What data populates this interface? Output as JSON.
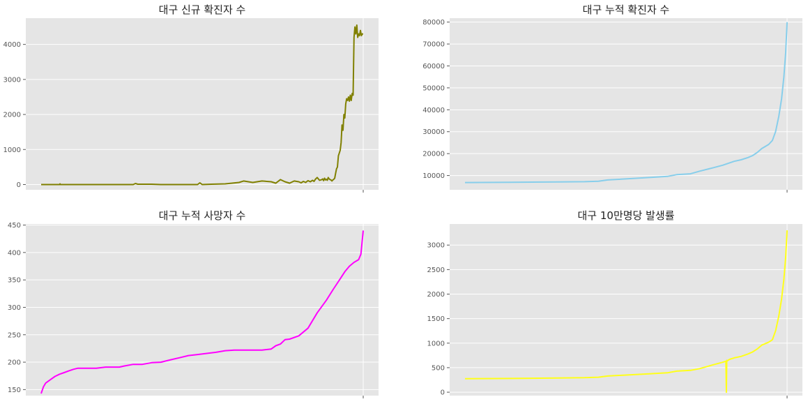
{
  "chart_data": [
    {
      "type": "line",
      "title": "대구 신규 확진자 수",
      "xlabel": "",
      "ylabel": "",
      "ylim": [
        -150,
        4750
      ],
      "yticks": [
        0,
        1000,
        2000,
        3000,
        4000
      ],
      "grid": true,
      "x_tick_count": 1,
      "series": [
        {
          "color": "#808000",
          "x": [
            0,
            20,
            40,
            41,
            42,
            60,
            80,
            100,
            120,
            140,
            160,
            180,
            200,
            205,
            210,
            240,
            260,
            280,
            300,
            320,
            340,
            345,
            350,
            370,
            400,
            430,
            440,
            460,
            480,
            500,
            510,
            520,
            530,
            540,
            550,
            560,
            565,
            570,
            575,
            580,
            585,
            590,
            593,
            596,
            600,
            605,
            610,
            612,
            614,
            616,
            618,
            620,
            622,
            624,
            626,
            628,
            630,
            632,
            634,
            636,
            638,
            640,
            642,
            644,
            646,
            648,
            650,
            652,
            654,
            656,
            658,
            660,
            662,
            664,
            666,
            668,
            670,
            672,
            674,
            676,
            678,
            680,
            682,
            684,
            686,
            688,
            690,
            692,
            694,
            696,
            698,
            700
          ],
          "values": [
            0,
            0,
            0,
            20,
            0,
            0,
            0,
            0,
            0,
            0,
            0,
            0,
            0,
            30,
            10,
            10,
            0,
            0,
            0,
            0,
            0,
            50,
            0,
            10,
            20,
            60,
            100,
            60,
            100,
            80,
            40,
            140,
            80,
            40,
            100,
            80,
            50,
            90,
            60,
            110,
            80,
            120,
            90,
            150,
            200,
            120,
            140,
            160,
            110,
            180,
            130,
            150,
            120,
            200,
            160,
            140,
            130,
            100,
            130,
            150,
            180,
            320,
            450,
            500,
            820,
            900,
            980,
            1200,
            1700,
            1550,
            2000,
            1900,
            2300,
            2450,
            2400,
            2500,
            2380,
            2550,
            2400,
            2600,
            2550,
            4200,
            4500,
            4300,
            4550,
            4200,
            4300,
            4250,
            4400,
            4250,
            4300,
            4300
          ]
        }
      ]
    },
    {
      "type": "line",
      "title": "대구 누적 확진자 수",
      "xlabel": "",
      "ylabel": "",
      "ylim": [
        3500,
        81800
      ],
      "yticks": [
        10000,
        20000,
        30000,
        40000,
        50000,
        60000,
        70000,
        80000
      ],
      "grid": true,
      "x_tick_count": 1,
      "series": [
        {
          "color": "#87ceeb",
          "x": [
            0,
            100,
            200,
            260,
            290,
            310,
            400,
            440,
            460,
            490,
            510,
            540,
            560,
            575,
            585,
            600,
            615,
            625,
            635,
            645,
            660,
            668,
            675,
            682,
            688,
            693,
            697,
            700
          ],
          "values": [
            6800,
            6900,
            7100,
            7200,
            7400,
            8000,
            9100,
            9600,
            10400,
            10800,
            12000,
            13600,
            14700,
            15800,
            16500,
            17200,
            18200,
            19100,
            20500,
            22300,
            24200,
            26000,
            30000,
            37000,
            45000,
            55000,
            66000,
            80000
          ]
        }
      ]
    },
    {
      "type": "line",
      "title": "대구 누적 사망자 수",
      "xlabel": "",
      "ylabel": "",
      "ylim": [
        139,
        452
      ],
      "yticks": [
        150,
        200,
        250,
        300,
        350,
        400,
        450
      ],
      "grid": true,
      "x_tick_count": 1,
      "series": [
        {
          "color": "#ff00ff",
          "x": [
            0,
            5,
            10,
            20,
            30,
            40,
            50,
            60,
            70,
            80,
            90,
            120,
            140,
            170,
            180,
            200,
            220,
            240,
            260,
            280,
            300,
            320,
            340,
            380,
            400,
            420,
            440,
            450,
            460,
            480,
            500,
            510,
            520,
            530,
            540,
            560,
            580,
            600,
            620,
            635,
            650,
            660,
            670,
            680,
            690,
            695,
            700
          ],
          "values": [
            143,
            155,
            162,
            168,
            174,
            178,
            181,
            184,
            187,
            189,
            189,
            189,
            191,
            191,
            193,
            196,
            196,
            199,
            200,
            204,
            208,
            212,
            214,
            218,
            221,
            222,
            222,
            222,
            222,
            222,
            224,
            230,
            233,
            241,
            242,
            248,
            262,
            290,
            313,
            333,
            352,
            365,
            375,
            382,
            387,
            397,
            440
          ]
        }
      ]
    },
    {
      "type": "line",
      "title": "대구 10만명당 발생률",
      "xlabel": "",
      "ylabel": "",
      "ylim": [
        -70,
        3430
      ],
      "yticks": [
        0,
        500,
        1000,
        1500,
        2000,
        2500,
        3000
      ],
      "grid": true,
      "x_tick_count": 1,
      "series": [
        {
          "color": "#ffff1a",
          "x": [
            0,
            100,
            200,
            260,
            290,
            310,
            400,
            440,
            460,
            490,
            510,
            540,
            560,
            566,
            567,
            568,
            569,
            570,
            575,
            585,
            600,
            615,
            625,
            635,
            645,
            660,
            668,
            675,
            682,
            688,
            693,
            697,
            700
          ],
          "values": [
            275,
            280,
            290,
            295,
            305,
            330,
            375,
            395,
            430,
            445,
            480,
            560,
            610,
            630,
            630,
            0,
            650,
            640,
            670,
            700,
            730,
            780,
            820,
            880,
            960,
            1020,
            1070,
            1250,
            1550,
            1900,
            2300,
            2750,
            3300
          ]
        }
      ]
    }
  ]
}
